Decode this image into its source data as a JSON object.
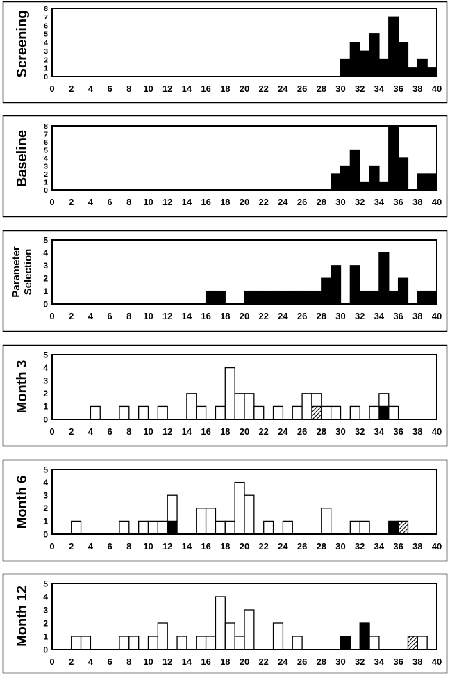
{
  "chart_data": [
    {
      "type": "bar",
      "ylabel": "Screening",
      "xlim": [
        0,
        40
      ],
      "ylim": [
        0,
        8
      ],
      "xticks": [
        "0",
        "2",
        "4",
        "6",
        "8",
        "10",
        "12",
        "14",
        "16",
        "18",
        "20",
        "22",
        "24",
        "26",
        "28",
        "30",
        "32",
        "34",
        "36",
        "38",
        "40"
      ],
      "yticks": [
        "0",
        "1",
        "2",
        "3",
        "4",
        "5",
        "6",
        "7",
        "8"
      ],
      "series": [
        {
          "pattern": "solid",
          "color": "#000000",
          "x": [
            31,
            32,
            33,
            34,
            35,
            36,
            37,
            38,
            39,
            40
          ],
          "values": [
            2,
            4,
            3,
            5,
            2,
            7,
            4,
            1,
            2,
            1
          ]
        }
      ]
    },
    {
      "type": "bar",
      "ylabel": "Baseline",
      "xlim": [
        0,
        40
      ],
      "ylim": [
        0,
        8
      ],
      "xticks": [
        "0",
        "2",
        "4",
        "6",
        "8",
        "10",
        "12",
        "14",
        "16",
        "18",
        "20",
        "22",
        "24",
        "26",
        "28",
        "30",
        "32",
        "34",
        "36",
        "38",
        "40"
      ],
      "yticks": [
        "0",
        "1",
        "2",
        "3",
        "4",
        "5",
        "6",
        "7",
        "8"
      ],
      "series": [
        {
          "pattern": "solid",
          "color": "#000000",
          "x": [
            30,
            31,
            32,
            33,
            34,
            35,
            36,
            37,
            39,
            40
          ],
          "values": [
            2,
            3,
            5,
            1,
            3,
            1,
            8,
            4,
            2,
            2
          ]
        }
      ]
    },
    {
      "type": "bar",
      "ylabel": "Parameter Selection",
      "xlim": [
        0,
        40
      ],
      "ylim": [
        0,
        5
      ],
      "xticks": [
        "0",
        "2",
        "4",
        "6",
        "8",
        "10",
        "12",
        "14",
        "16",
        "18",
        "20",
        "22",
        "24",
        "26",
        "28",
        "30",
        "32",
        "34",
        "36",
        "38",
        "40"
      ],
      "yticks": [
        "0",
        "1",
        "2",
        "3",
        "4",
        "5"
      ],
      "series": [
        {
          "pattern": "solid",
          "color": "#000000",
          "x": [
            17,
            18,
            21,
            22,
            23,
            24,
            25,
            26,
            27,
            28,
            29,
            30,
            32,
            33,
            34,
            35,
            36,
            37,
            39,
            40
          ],
          "values": [
            1,
            1,
            1,
            1,
            1,
            1,
            1,
            1,
            1,
            1,
            2,
            3,
            3,
            1,
            1,
            4,
            1,
            2,
            1,
            1
          ]
        }
      ]
    },
    {
      "type": "bar",
      "ylabel": "Month 3",
      "xlim": [
        0,
        40
      ],
      "ylim": [
        0,
        5
      ],
      "xticks": [
        "0",
        "2",
        "4",
        "6",
        "8",
        "10",
        "12",
        "14",
        "16",
        "18",
        "20",
        "22",
        "24",
        "26",
        "28",
        "30",
        "32",
        "34",
        "36",
        "38",
        "40"
      ],
      "yticks": [
        "0",
        "1",
        "2",
        "3",
        "4",
        "5"
      ],
      "series": [
        {
          "pattern": "hatched",
          "color": "#000000",
          "x": [
            28
          ],
          "values": [
            1
          ]
        },
        {
          "pattern": "solid",
          "color": "#000000",
          "x": [
            35
          ],
          "values": [
            1
          ]
        },
        {
          "pattern": "open",
          "color": "#ffffff",
          "x": [
            5,
            8,
            10,
            12,
            15,
            16,
            18,
            19,
            20,
            21,
            22,
            24,
            26,
            27,
            28,
            29,
            30,
            32,
            34,
            35,
            36
          ],
          "values": [
            1,
            1,
            1,
            1,
            2,
            1,
            1,
            4,
            2,
            2,
            1,
            1,
            1,
            2,
            1,
            1,
            1,
            1,
            1,
            1,
            1
          ]
        }
      ]
    },
    {
      "type": "bar",
      "ylabel": "Month 6",
      "xlim": [
        0,
        40
      ],
      "ylim": [
        0,
        5
      ],
      "xticks": [
        "0",
        "2",
        "4",
        "6",
        "8",
        "10",
        "12",
        "14",
        "16",
        "18",
        "20",
        "22",
        "24",
        "26",
        "28",
        "30",
        "32",
        "34",
        "36",
        "38",
        "40"
      ],
      "yticks": [
        "0",
        "1",
        "2",
        "3",
        "4",
        "5"
      ],
      "series": [
        {
          "pattern": "solid",
          "color": "#000000",
          "x": [
            13,
            36
          ],
          "values": [
            1,
            1
          ]
        },
        {
          "pattern": "hatched",
          "color": "#000000",
          "x": [
            37
          ],
          "values": [
            1
          ]
        },
        {
          "pattern": "open",
          "color": "#ffffff",
          "x": [
            3,
            8,
            10,
            11,
            12,
            13,
            16,
            17,
            18,
            19,
            20,
            21,
            23,
            25,
            29,
            32,
            33
          ],
          "values": [
            1,
            1,
            1,
            1,
            1,
            2,
            2,
            2,
            1,
            1,
            4,
            3,
            1,
            1,
            2,
            1,
            1
          ]
        }
      ]
    },
    {
      "type": "bar",
      "ylabel": "Month 12",
      "xlim": [
        0,
        40
      ],
      "ylim": [
        0,
        5
      ],
      "xticks": [
        "0",
        "2",
        "4",
        "6",
        "8",
        "10",
        "12",
        "14",
        "16",
        "18",
        "20",
        "22",
        "24",
        "26",
        "28",
        "30",
        "32",
        "34",
        "36",
        "38",
        "40"
      ],
      "yticks": [
        "0",
        "1",
        "2",
        "3",
        "4",
        "5"
      ],
      "series": [
        {
          "pattern": "solid",
          "color": "#000000",
          "x": [
            31,
            33
          ],
          "values": [
            1,
            2
          ]
        },
        {
          "pattern": "hatched",
          "color": "#000000",
          "x": [
            38
          ],
          "values": [
            1
          ]
        },
        {
          "pattern": "open",
          "color": "#ffffff",
          "x": [
            3,
            4,
            8,
            9,
            11,
            12,
            14,
            16,
            17,
            18,
            19,
            20,
            21,
            24,
            26,
            34,
            39
          ],
          "values": [
            1,
            1,
            1,
            1,
            1,
            2,
            1,
            1,
            1,
            4,
            2,
            1,
            3,
            2,
            1,
            1,
            1
          ]
        }
      ]
    }
  ]
}
